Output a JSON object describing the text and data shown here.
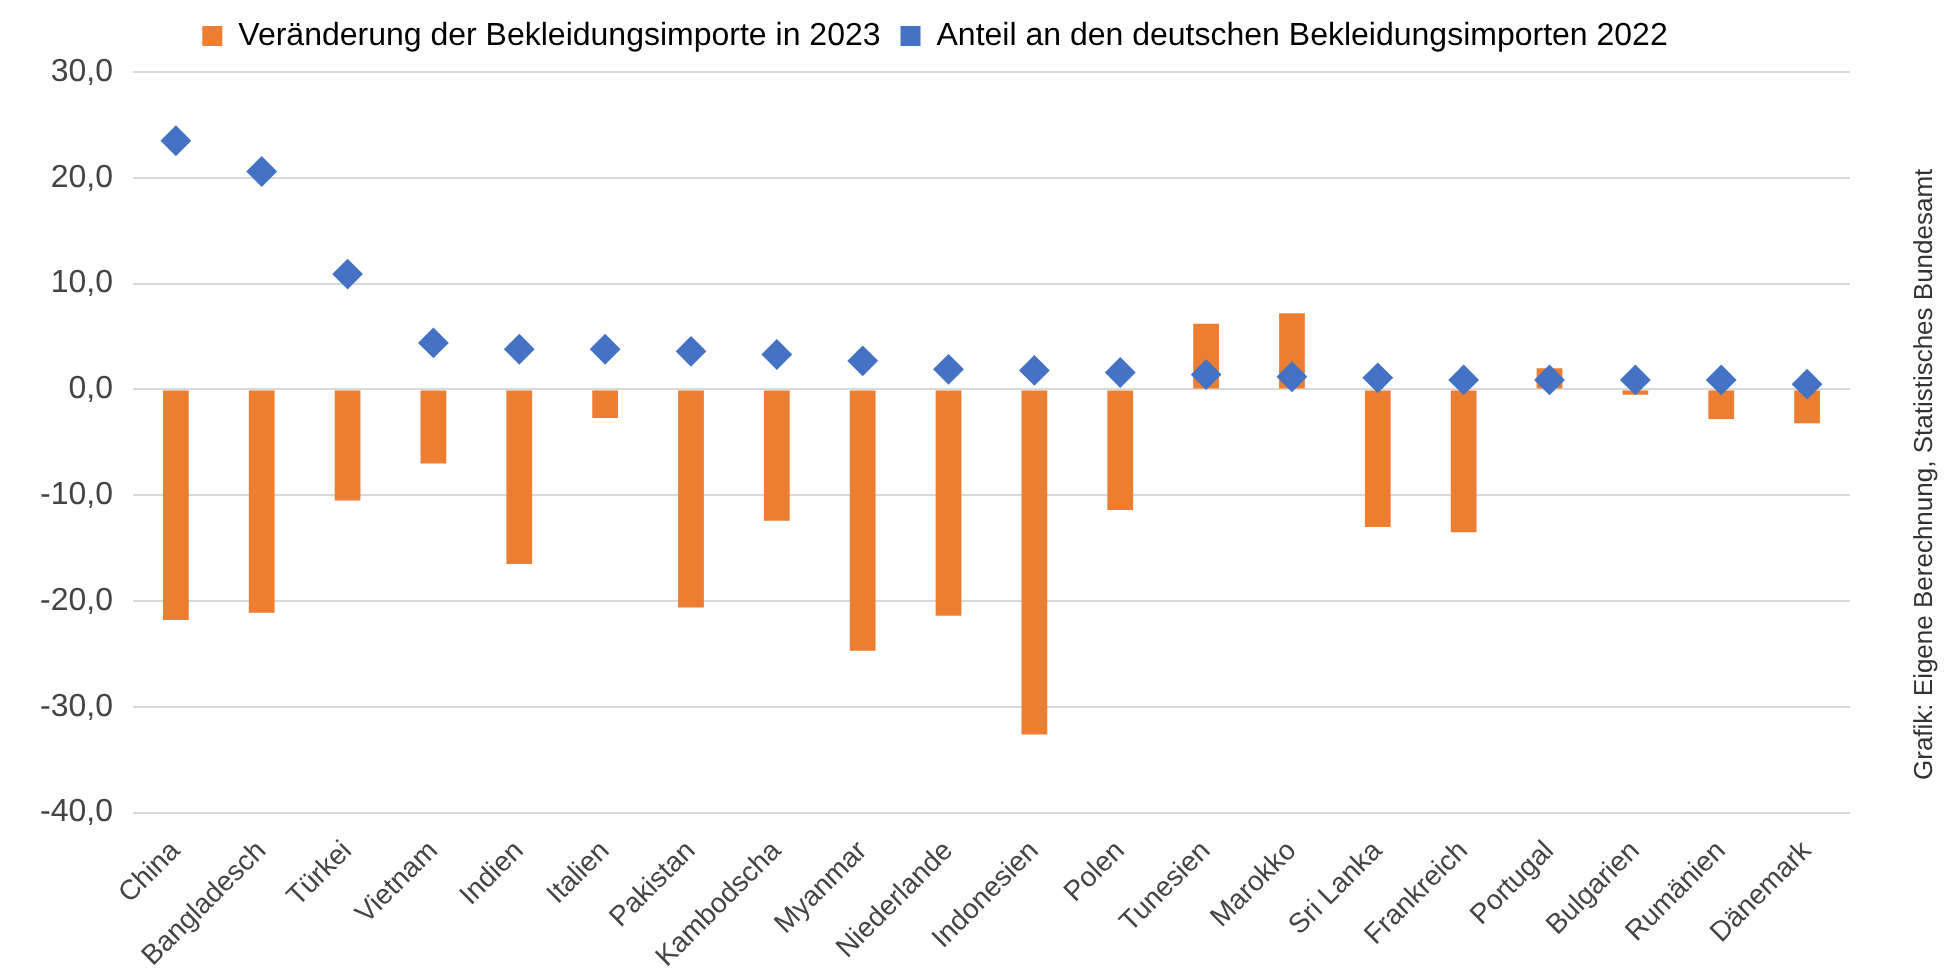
{
  "chart_data": {
    "type": "bar",
    "categories": [
      "China",
      "Bangladesch",
      "Türkei",
      "Vietnam",
      "Indien",
      "Italien",
      "Pakistan",
      "Kambodscha",
      "Myanmar",
      "Niederlande",
      "Indonesien",
      "Polen",
      "Tunesien",
      "Marokko",
      "Sri Lanka",
      "Frankreich",
      "Portugal",
      "Bulgarien",
      "Rumänien",
      "Dänemark"
    ],
    "series": [
      {
        "name": "Veränderung der Bekleidungsimporte in 2023",
        "color": "#ed7d31",
        "values": [
          -21.8,
          -21.1,
          -10.5,
          -7.0,
          -16.5,
          -2.7,
          -20.6,
          -12.4,
          -24.7,
          -21.4,
          -32.6,
          -11.4,
          6.2,
          7.2,
          -13.0,
          -13.5,
          2.0,
          -0.5,
          -2.8,
          -3.2
        ]
      },
      {
        "name": "Anteil an den deutschen Bekleidungsimporten 2022",
        "type": "scatter",
        "marker": "diamond",
        "color": "#4472c4",
        "values": [
          23.5,
          20.6,
          10.9,
          4.4,
          3.8,
          3.8,
          3.6,
          3.3,
          2.7,
          1.9,
          1.8,
          1.6,
          1.4,
          1.2,
          1.1,
          0.9,
          0.9,
          0.9,
          0.9,
          0.5
        ]
      }
    ],
    "ylim": [
      -40,
      30
    ],
    "yticks": [
      {
        "value": -40,
        "label": "-40,0"
      },
      {
        "value": -30,
        "label": "-30,0"
      },
      {
        "value": -20,
        "label": "-20,0"
      },
      {
        "value": -10,
        "label": "-10,0"
      },
      {
        "value": 0,
        "label": "0,0"
      },
      {
        "value": 10,
        "label": "10,0"
      },
      {
        "value": 20,
        "label": "20,0"
      },
      {
        "value": 30,
        "label": "30,0"
      }
    ],
    "grid": "y",
    "legend": "top",
    "annotations": [
      "Grafik: Eigene Berechnung, Statistisches Bundesamt"
    ]
  }
}
